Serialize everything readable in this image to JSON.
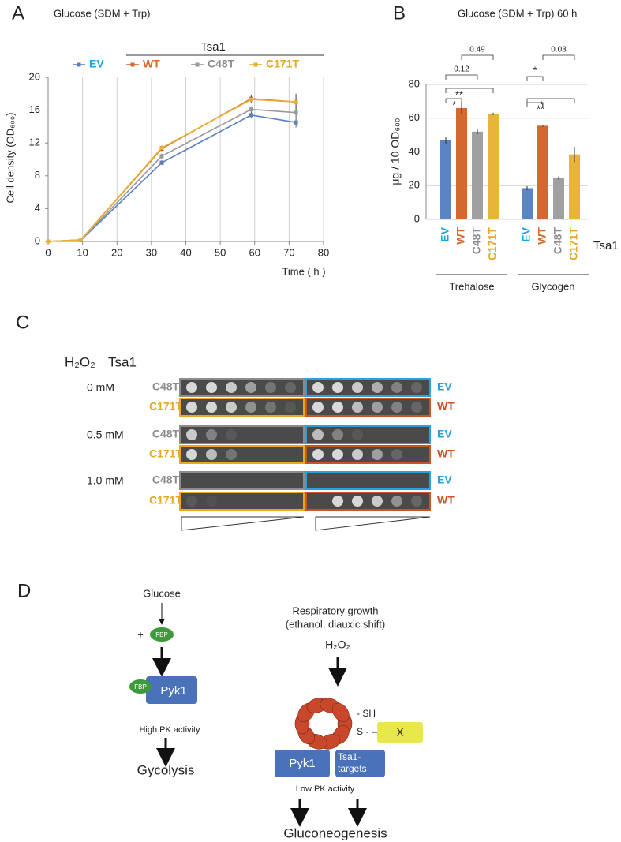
{
  "chart_data": [
    {
      "type": "line",
      "panel_label": "A",
      "title": "Glucose (SDM + Trp)",
      "legend_title": "Tsa1",
      "x": [
        0,
        9.5,
        33,
        59,
        72
      ],
      "series": [
        {
          "name": "EV",
          "color": "#5b7fc0",
          "label_color": "#1da5df",
          "values": [
            0,
            0.15,
            9.6,
            15.4,
            14.5
          ],
          "errors": [
            0,
            0.05,
            0.3,
            0.4,
            0.6
          ]
        },
        {
          "name": "WT",
          "color": "#d2692f",
          "label_color": "#d2692f",
          "values": [
            0,
            0.2,
            11.3,
            17.4,
            17.0
          ],
          "errors": [
            0,
            0.05,
            0.3,
            0.5,
            0.8
          ]
        },
        {
          "name": "C48T",
          "color": "#999999",
          "label_color": "#8c8c8c",
          "values": [
            0,
            0.15,
            10.4,
            16.1,
            15.7
          ],
          "errors": [
            0,
            0.05,
            0.3,
            0.3,
            0.6
          ]
        },
        {
          "name": "C171T",
          "color": "#e8b030",
          "label_color": "#e8a820",
          "values": [
            0,
            0.2,
            11.4,
            17.3,
            17.0
          ],
          "errors": [
            0,
            0.05,
            0.3,
            0.4,
            1.0
          ]
        }
      ],
      "xlabel": "Time ( h )",
      "ylabel": "Cell density (OD₆₀₀)",
      "xlim": [
        0,
        80
      ],
      "xticks": [
        0,
        10,
        20,
        30,
        40,
        50,
        60,
        70,
        80
      ],
      "ylim": [
        0,
        20
      ],
      "yticks": [
        0,
        4,
        8,
        12,
        16,
        20
      ],
      "grid": "x"
    },
    {
      "type": "bar",
      "panel_label": "B",
      "title": "Glucose (SDM + Trp) 60 h",
      "series_title": "Tsa1",
      "categories": [
        "Trehalose",
        "Glycogen"
      ],
      "series": [
        {
          "name": "EV",
          "color": "#5b84c4",
          "label_color": "#1da5df",
          "values": [
            47,
            18.5
          ],
          "errors": [
            2,
            1.2
          ]
        },
        {
          "name": "WT",
          "color": "#d2692f",
          "label_color": "#d2692f",
          "values": [
            66,
            55.5
          ],
          "errors": [
            3.5,
            0.6
          ]
        },
        {
          "name": "C48T",
          "color": "#a0a0a0",
          "label_color": "#8c8c8c",
          "values": [
            52,
            24.5
          ],
          "errors": [
            1.5,
            1
          ]
        },
        {
          "name": "C171T",
          "color": "#e8b43a",
          "label_color": "#e8a820",
          "values": [
            62.5,
            38.5
          ],
          "errors": [
            0.7,
            4.5
          ]
        }
      ],
      "significance": [
        [
          "*",
          "**",
          "0.12",
          "0.49"
        ],
        [
          "*",
          "**",
          "*",
          "0.03"
        ]
      ],
      "ylabel": "μg / 10 OD₆₀₀",
      "ylim": [
        0,
        80
      ],
      "yticks": [
        0,
        20,
        40,
        60,
        80
      ],
      "grid": "y"
    }
  ],
  "spot_assay": {
    "label": "C",
    "header": [
      "H₂O₂",
      "Tsa1"
    ],
    "conditions": [
      {
        "dose": "0 mM",
        "left": [
          "C48T",
          "C171T"
        ],
        "right": [
          "EV",
          "WT"
        ]
      },
      {
        "dose": "0.5 mM",
        "left": [
          "C48T",
          "C171T"
        ],
        "right": [
          "EV",
          "WT"
        ]
      },
      {
        "dose": "1.0 mM",
        "left": [
          "C48T",
          "C171T"
        ],
        "right": [
          "EV",
          "WT"
        ]
      }
    ]
  },
  "diagram": {
    "label": "D",
    "glucose": "Glucose",
    "plus": "+",
    "fbp": [
      "FBP",
      "FBP"
    ],
    "pyk1_left": "Pyk1",
    "high_pk": "High PK activity",
    "glycolysis": "Gycolysis",
    "respiratory": [
      "Respiratory growth",
      "(ethanol, diauxic shift)"
    ],
    "h2o2": "H₂O₂",
    "sh": "- SH",
    "s": "S -",
    "x": "X",
    "pyk1_right": "Pyk1",
    "targets": [
      "Tsa1-",
      "targets"
    ],
    "low_pk": "Low PK activity",
    "gluconeogenesis": "Gluconeogenesis"
  }
}
